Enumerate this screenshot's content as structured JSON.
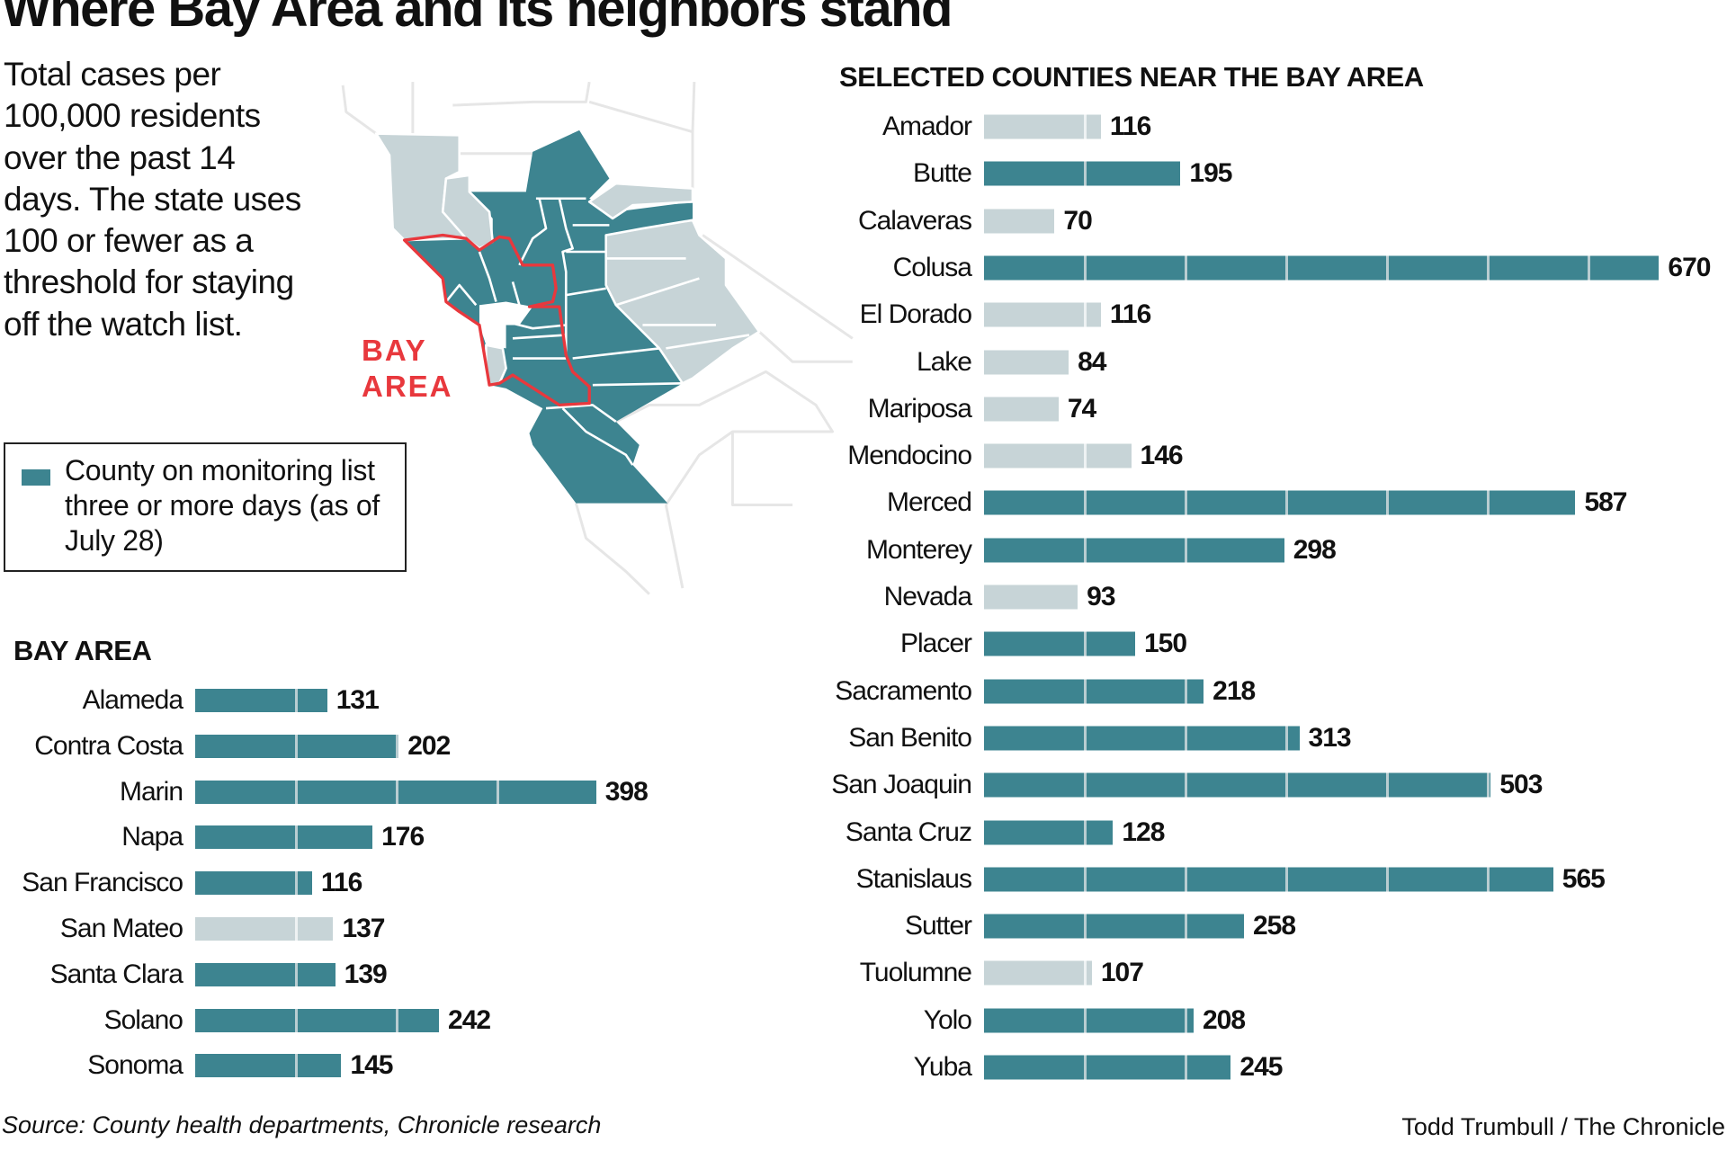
{
  "title": "Where Bay Area and its neighbors stand",
  "intro": "Total cases per 100,000 residents over the past 14 days. The state uses 100 or fewer as a threshold for staying off the watch list.",
  "legend": {
    "label": "County on monitoring list three or more days (as of July 28)",
    "color": "#3d8490"
  },
  "map": {
    "region_label_line1": "BAY",
    "region_label_line2": "AREA",
    "outline_color": "#e8383d"
  },
  "colors": {
    "monitored": "#3d8490",
    "not_monitored": "#c7d4d7"
  },
  "chart_data": [
    {
      "type": "bar",
      "orientation": "horizontal",
      "title": "BAY AREA",
      "categories": [
        "Alameda",
        "Contra Costa",
        "Marin",
        "Napa",
        "San Francisco",
        "San Mateo",
        "Santa Clara",
        "Solano",
        "Sonoma"
      ],
      "values": [
        131,
        202,
        398,
        176,
        116,
        137,
        139,
        242,
        145
      ],
      "monitored": [
        true,
        true,
        true,
        true,
        true,
        false,
        true,
        true,
        true
      ],
      "gridline_interval": 100
    },
    {
      "type": "bar",
      "orientation": "horizontal",
      "title": "SELECTED COUNTIES NEAR THE BAY AREA",
      "categories": [
        "Amador",
        "Butte",
        "Calaveras",
        "Colusa",
        "El Dorado",
        "Lake",
        "Mariposa",
        "Mendocino",
        "Merced",
        "Monterey",
        "Nevada",
        "Placer",
        "Sacramento",
        "San Benito",
        "San Joaquin",
        "Santa Cruz",
        "Stanislaus",
        "Sutter",
        "Tuolumne",
        "Yolo",
        "Yuba"
      ],
      "values": [
        116,
        195,
        70,
        670,
        116,
        84,
        74,
        146,
        587,
        298,
        93,
        150,
        218,
        313,
        503,
        128,
        565,
        258,
        107,
        208,
        245
      ],
      "monitored": [
        false,
        true,
        false,
        true,
        false,
        false,
        false,
        false,
        true,
        true,
        false,
        true,
        true,
        true,
        true,
        true,
        true,
        true,
        false,
        true,
        true
      ],
      "gridline_interval": 100
    }
  ],
  "source": "Source: County health departments, Chronicle research",
  "credit": "Todd Trumbull / The Chronicle"
}
